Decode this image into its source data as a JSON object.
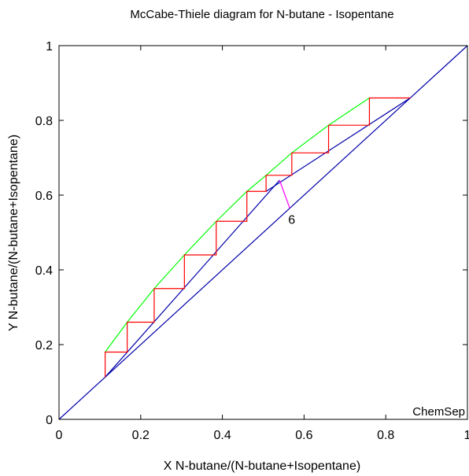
{
  "chart_data": {
    "type": "line",
    "title": "McCabe-Thiele diagram for N-butane - Isopentane",
    "xlabel": "X N-butane/(N-butane+Isopentane)",
    "ylabel": "Y N-butane/(N-butane+Isopentane)",
    "xlim": [
      0,
      1
    ],
    "ylim": [
      0,
      1
    ],
    "x_ticks": [
      "0",
      "0.2",
      "0.4",
      "0.6",
      "0.8",
      "1"
    ],
    "y_ticks": [
      "0",
      "0.2",
      "0.4",
      "0.6",
      "0.8",
      "1"
    ],
    "grid": false,
    "watermark": "ChemSep",
    "feed_stage_label": "6",
    "colors": {
      "equilibrium": "#00ff00",
      "stages": "#ff0000",
      "operating": "#0000aa",
      "diagonal": "#0000aa",
      "feed_pointer": "#ff00ff"
    },
    "series": {
      "diagonal": {
        "x": [
          0,
          1
        ],
        "y": [
          0,
          1
        ]
      },
      "equilibrium": {
        "x": [
          0.113,
          0.167,
          0.233,
          0.307,
          0.385,
          0.46,
          0.507,
          0.57,
          0.66,
          0.76
        ],
        "y": [
          0.18,
          0.26,
          0.35,
          0.44,
          0.53,
          0.61,
          0.653,
          0.713,
          0.787,
          0.86
        ]
      },
      "operating_rectifying": {
        "x": [
          0.507,
          0.86
        ],
        "y": [
          0.61,
          0.86
        ]
      },
      "operating_stripping": {
        "x": [
          0.113,
          0.54
        ],
        "y": [
          0.113,
          0.64
        ]
      },
      "stages": {
        "x": [
          0.86,
          0.76,
          0.76,
          0.66,
          0.66,
          0.57,
          0.57,
          0.507,
          0.507,
          0.46,
          0.46,
          0.385,
          0.385,
          0.307,
          0.307,
          0.233,
          0.233,
          0.167,
          0.167,
          0.113,
          0.113
        ],
        "y": [
          0.86,
          0.86,
          0.787,
          0.787,
          0.713,
          0.713,
          0.653,
          0.653,
          0.61,
          0.61,
          0.53,
          0.53,
          0.44,
          0.44,
          0.35,
          0.35,
          0.26,
          0.26,
          0.18,
          0.18,
          0.113
        ]
      },
      "feed_pointer": {
        "x": [
          0.54,
          0.565
        ],
        "y": [
          0.64,
          0.565
        ]
      }
    }
  }
}
